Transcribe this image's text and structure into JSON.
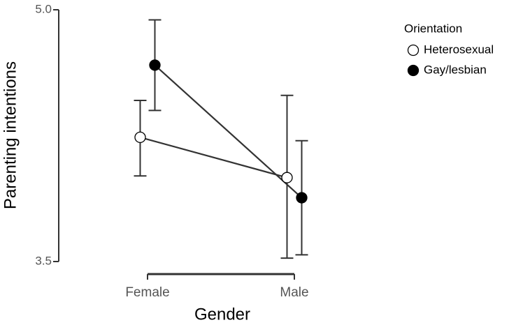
{
  "chart_data": {
    "type": "line",
    "x_label": "Gender",
    "y_label": "Parenting intentions",
    "categories": [
      "Female",
      "Male"
    ],
    "ylim": [
      3.5,
      5.0
    ],
    "yticks": [
      3.5,
      {
        "value": 5.0,
        "label": "5.0"
      }
    ],
    "legend_title": "Orientation",
    "legend_position": "upper right",
    "series": [
      {
        "name": "Heterosexual",
        "color": "#ffffff",
        "values": [
          4.24,
          4.0
        ],
        "lower": [
          4.01,
          3.52
        ],
        "upper": [
          4.46,
          4.49
        ]
      },
      {
        "name": "Gay/lesbian",
        "color": "#000000",
        "values": [
          4.67,
          3.88
        ],
        "lower": [
          4.4,
          3.54
        ],
        "upper": [
          4.94,
          4.22
        ]
      }
    ]
  }
}
